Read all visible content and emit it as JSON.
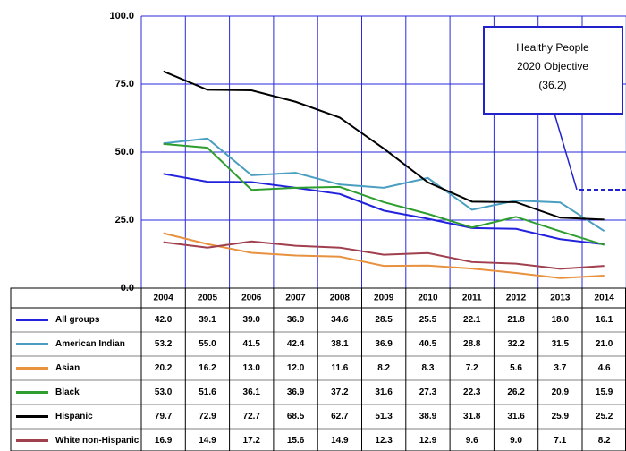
{
  "chart_data": {
    "type": "line",
    "categories": [
      "2004",
      "2005",
      "2006",
      "2007",
      "2008",
      "2009",
      "2010",
      "2011",
      "2012",
      "2013",
      "2014"
    ],
    "ylim": [
      0,
      100
    ],
    "yticks": [
      {
        "value": 0,
        "label": "0.0"
      },
      {
        "value": 25,
        "label": "25.0"
      },
      {
        "value": 50,
        "label": "50.0"
      },
      {
        "value": 75,
        "label": "75.0"
      },
      {
        "value": 100,
        "label": "100.0"
      }
    ],
    "grid": true,
    "series": [
      {
        "name": "All groups",
        "color": "#2222dd",
        "values": [
          42.0,
          39.1,
          39.0,
          36.9,
          34.6,
          28.5,
          25.5,
          22.1,
          21.8,
          18.0,
          16.1
        ],
        "value_labels": [
          "42.0",
          "39.1",
          "39.0",
          "36.9",
          "34.6",
          "28.5",
          "25.5",
          "22.1",
          "21.8",
          "18.0",
          "16.1"
        ]
      },
      {
        "name": "American Indian",
        "color": "#4a9fc0",
        "values": [
          53.2,
          55.0,
          41.5,
          42.4,
          38.1,
          36.9,
          40.5,
          28.8,
          32.2,
          31.5,
          21.0
        ],
        "value_labels": [
          "53.2",
          "55.0",
          "41.5",
          "42.4",
          "38.1",
          "36.9",
          "40.5",
          "28.8",
          "32.2",
          "31.5",
          "21.0"
        ]
      },
      {
        "name": "Asian",
        "color": "#e8913f",
        "values": [
          20.2,
          16.2,
          13.0,
          12.0,
          11.6,
          8.2,
          8.3,
          7.2,
          5.6,
          3.7,
          4.6
        ],
        "value_labels": [
          "20.2",
          "16.2",
          "13.0",
          "12.0",
          "11.6",
          "8.2",
          "8.3",
          "7.2",
          "5.6",
          "3.7",
          "4.6"
        ]
      },
      {
        "name": "Black",
        "color": "#2e9e2e",
        "values": [
          53.0,
          51.6,
          36.1,
          36.9,
          37.2,
          31.6,
          27.3,
          22.3,
          26.2,
          20.9,
          15.9
        ],
        "value_labels": [
          "53.0",
          "51.6",
          "36.1",
          "36.9",
          "37.2",
          "31.6",
          "27.3",
          "22.3",
          "26.2",
          "20.9",
          "15.9"
        ]
      },
      {
        "name": "Hispanic",
        "color": "#000000",
        "values": [
          79.7,
          72.9,
          72.7,
          68.5,
          62.7,
          51.3,
          38.9,
          31.8,
          31.6,
          25.9,
          25.2
        ],
        "value_labels": [
          "79.7",
          "72.9",
          "72.7",
          "68.5",
          "62.7",
          "51.3",
          "38.9",
          "31.8",
          "31.6",
          "25.9",
          "25.2"
        ]
      },
      {
        "name": "White non-Hispanic",
        "color": "#a0404f",
        "values": [
          16.9,
          14.9,
          17.2,
          15.6,
          14.9,
          12.3,
          12.9,
          9.6,
          9.0,
          7.1,
          8.2
        ],
        "value_labels": [
          "16.9",
          "14.9",
          "17.2",
          "15.6",
          "14.9",
          "12.3",
          "12.9",
          "9.6",
          "9.0",
          "7.1",
          "8.2"
        ]
      }
    ],
    "annotation": {
      "lines": [
        "Healthy People",
        "2020 Objective",
        "(36.2)"
      ],
      "value": 36.2,
      "color": "#2222cc"
    }
  }
}
